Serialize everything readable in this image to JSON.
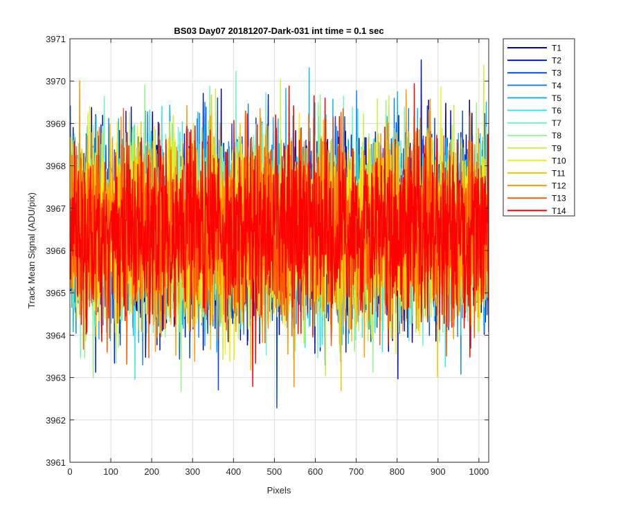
{
  "chart_data": {
    "type": "line",
    "title": "BS03 Day07 20181207-Dark-031 int time = 0.1 sec",
    "xlabel": "Pixels",
    "ylabel": "Track Mean Signal (ADU/pix)",
    "xlim": [
      0,
      1024
    ],
    "ylim": [
      3961,
      3971
    ],
    "xticks": [
      0,
      100,
      200,
      300,
      400,
      500,
      600,
      700,
      800,
      900,
      1000
    ],
    "yticks": [
      3961,
      3962,
      3963,
      3964,
      3965,
      3966,
      3967,
      3968,
      3969,
      3970,
      3971
    ],
    "grid": true,
    "legend_position": "outside-top-right",
    "noise": {
      "mean": 3966.5,
      "sigma": 1.05,
      "points_per_series": 1024
    },
    "series": [
      {
        "name": "T1",
        "color": "#0000a8"
      },
      {
        "name": "T2",
        "color": "#0016ce"
      },
      {
        "name": "T3",
        "color": "#0a44ee"
      },
      {
        "name": "T4",
        "color": "#1a86f0"
      },
      {
        "name": "T5",
        "color": "#10b8f4"
      },
      {
        "name": "T6",
        "color": "#2ee8e8"
      },
      {
        "name": "T7",
        "color": "#6ef0c8"
      },
      {
        "name": "T8",
        "color": "#90f58c"
      },
      {
        "name": "T9",
        "color": "#c8f040"
      },
      {
        "name": "T10",
        "color": "#f5ef10"
      },
      {
        "name": "T11",
        "color": "#f8c400"
      },
      {
        "name": "T12",
        "color": "#ff9600"
      },
      {
        "name": "T13",
        "color": "#ff5a00"
      },
      {
        "name": "T14",
        "color": "#ff0000"
      }
    ]
  }
}
